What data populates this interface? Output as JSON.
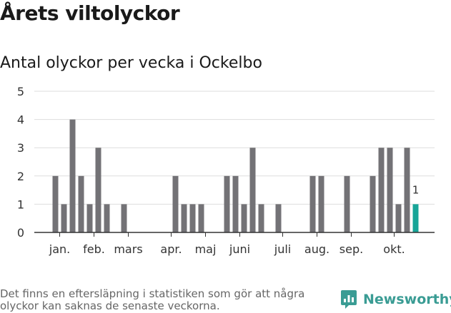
{
  "title": "Årets viltolyckor",
  "subtitle": "Antal olyckor per vecka i Ockelbo",
  "footnote": "Det finns en eftersläpning i statistiken som gör att några olyckor kan saknas de senaste veckorna.",
  "brand": {
    "name": "Newsworthy",
    "icon": "newsworthy-logo-icon"
  },
  "colors": {
    "bar": "#737276",
    "highlight": "#17a598",
    "grid": "#dddddd",
    "axis": "#333333"
  },
  "chart_data": {
    "type": "bar",
    "x": [
      1,
      2,
      3,
      4,
      5,
      6,
      7,
      8,
      9,
      10,
      11,
      12,
      13,
      14,
      15,
      16,
      17,
      18,
      19,
      20,
      21,
      22,
      23,
      24,
      25,
      26,
      27,
      28,
      29,
      30,
      31,
      32,
      33,
      34,
      35,
      36,
      37,
      38,
      39,
      40,
      41,
      42
    ],
    "values": [
      2,
      1,
      4,
      2,
      1,
      3,
      1,
      0,
      1,
      0,
      0,
      0,
      0,
      0,
      2,
      1,
      1,
      1,
      0,
      0,
      2,
      2,
      1,
      3,
      1,
      0,
      1,
      0,
      0,
      0,
      2,
      2,
      0,
      0,
      2,
      0,
      0,
      2,
      3,
      3,
      1,
      3
    ],
    "highlight": {
      "x": 43,
      "value": 1,
      "label": "1"
    },
    "xlim": [
      1,
      44
    ],
    "ylim": [
      0,
      5
    ],
    "yticks": [
      "0",
      "1",
      "2",
      "3",
      "4",
      "5"
    ],
    "month_labels": [
      {
        "label": "jan.",
        "x": 1.5
      },
      {
        "label": "feb.",
        "x": 5.5
      },
      {
        "label": "mars",
        "x": 9.5
      },
      {
        "label": "apr.",
        "x": 14.5
      },
      {
        "label": "maj",
        "x": 18.5
      },
      {
        "label": "juni",
        "x": 22.5
      },
      {
        "label": "juli",
        "x": 27.5
      },
      {
        "label": "aug.",
        "x": 31.5
      },
      {
        "label": "sep.",
        "x": 35.5
      },
      {
        "label": "okt.",
        "x": 40.5
      }
    ],
    "grid": true
  }
}
